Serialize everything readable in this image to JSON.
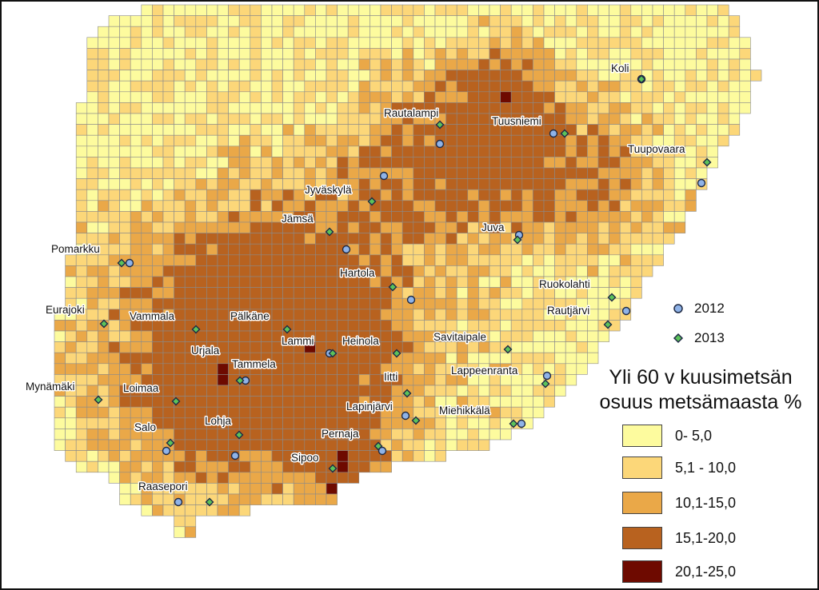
{
  "legend": {
    "title": "Yli 60 v kuusimetsän\nosuus metsämaasta %",
    "symbols": [
      {
        "label": "2012",
        "icon": "circle-marker",
        "fill": "#8fb3e8"
      },
      {
        "label": "2013",
        "icon": "diamond-marker",
        "fill": "#5cc25a"
      }
    ],
    "classes": [
      {
        "label": "0- 5,0",
        "color": "#fdfb9e"
      },
      {
        "label": "5,1 - 10,0",
        "color": "#fcd779"
      },
      {
        "label": "10,1-15,0",
        "color": "#eaa848"
      },
      {
        "label": "15,1-20,0",
        "color": "#b8621f"
      },
      {
        "label": "20,1-25,0",
        "color": "#6e0a00"
      }
    ]
  },
  "places": [
    {
      "name": "Koli"
    },
    {
      "name": "Rautalampi"
    },
    {
      "name": "Tuusniemi"
    },
    {
      "name": "Tuupovaara"
    },
    {
      "name": "Jyväskylä"
    },
    {
      "name": "Jämsä"
    },
    {
      "name": "Juva"
    },
    {
      "name": "Pomarkku"
    },
    {
      "name": "Hartola"
    },
    {
      "name": "Ruokolahti"
    },
    {
      "name": "Rautjärvi"
    },
    {
      "name": "Eurajoki"
    },
    {
      "name": "Vammala"
    },
    {
      "name": "Pälkäne"
    },
    {
      "name": "Lammi"
    },
    {
      "name": "Heinola"
    },
    {
      "name": "Savitaipale"
    },
    {
      "name": "Urjala"
    },
    {
      "name": "Tammela"
    },
    {
      "name": "Lappeenranta"
    },
    {
      "name": "Iitti"
    },
    {
      "name": "Mynämäki"
    },
    {
      "name": "Loimaa"
    },
    {
      "name": "Lapinjärvi"
    },
    {
      "name": "Miehikkälä"
    },
    {
      "name": "Lohja"
    },
    {
      "name": "Salo"
    },
    {
      "name": "Pernaja"
    },
    {
      "name": "Sipoo"
    },
    {
      "name": "Raasepori"
    }
  ]
}
